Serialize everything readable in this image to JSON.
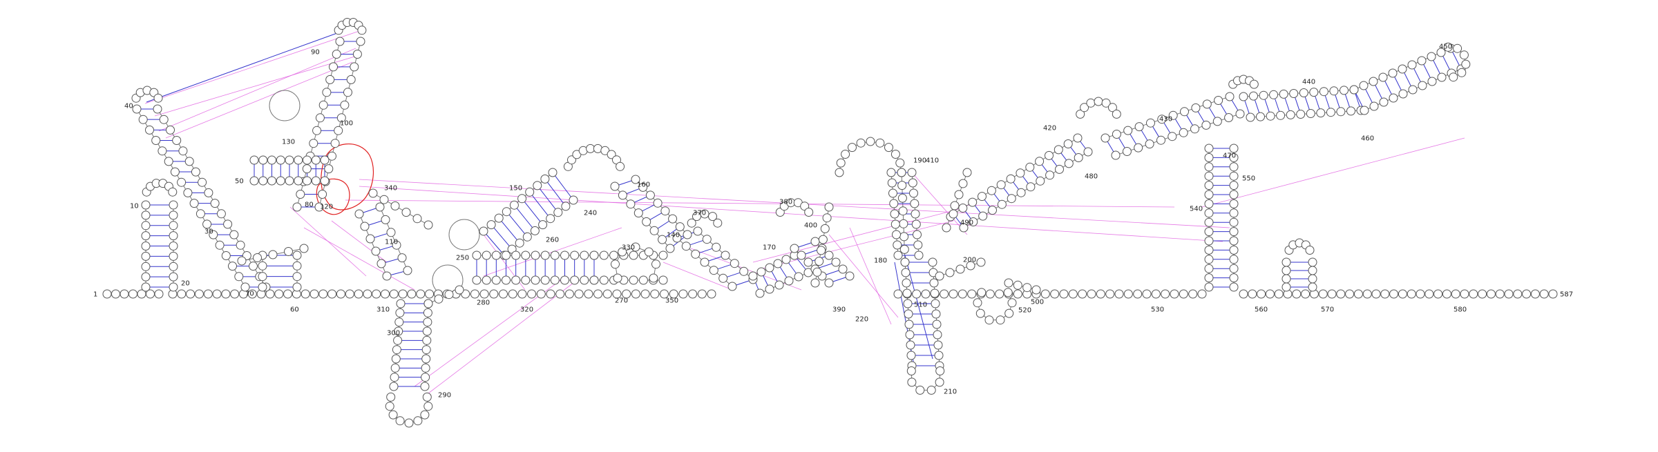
{
  "diagram": {
    "type": "rna-secondary-structure",
    "sequence_length": 587,
    "position_labels": [
      "1",
      "10",
      "20",
      "30",
      "40",
      "50",
      "60",
      "70",
      "80",
      "90",
      "100",
      "110",
      "120",
      "130",
      "140",
      "150",
      "160",
      "170",
      "180",
      "190",
      "200",
      "210",
      "220",
      "240",
      "250",
      "260",
      "270",
      "280",
      "290",
      "300",
      "310",
      "320",
      "330",
      "340",
      "350",
      "370",
      "380",
      "390",
      "400",
      "410",
      "420",
      "430",
      "440",
      "450",
      "460",
      "470",
      "480",
      "490",
      "500",
      "510",
      "520",
      "530",
      "540",
      "550",
      "560",
      "570",
      "580",
      "587"
    ],
    "colors": {
      "nucleotide_stroke": "#555555",
      "base_pair": "#3333cc",
      "pseudoknot": "#e060e0",
      "highlight": "#e02020"
    }
  }
}
